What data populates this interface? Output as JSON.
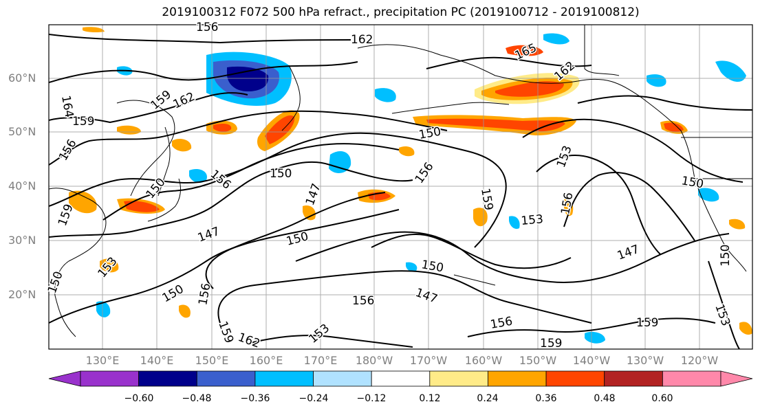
{
  "title": "2019100312 F072 500 hPa refract., precipitation PC (2019100712 - 2019100812)",
  "lat_labels": [
    "60°N",
    "50°N",
    "40°N",
    "30°N",
    "20°N"
  ],
  "lon_labels": [
    "130°E",
    "140°E",
    "150°E",
    "160°E",
    "170°E",
    "180°W",
    "170°W",
    "160°W",
    "150°W",
    "140°W",
    "130°W",
    "120°W"
  ],
  "contour_labels": [
    "162",
    "165",
    "162",
    "162",
    "159",
    "156",
    "164",
    "159",
    "156",
    "150",
    "150",
    "150",
    "156",
    "147",
    "156",
    "159",
    "153",
    "153",
    "156",
    "159",
    "150",
    "150",
    "147",
    "150",
    "150",
    "150",
    "156",
    "147",
    "156",
    "159",
    "153",
    "162",
    "153",
    "156",
    "159",
    "159",
    "147",
    "153",
    "150"
  ],
  "colorbar": {
    "tick_labels": [
      "−0.60",
      "−0.48",
      "−0.36",
      "−0.24",
      "−0.12",
      "0.12",
      "0.24",
      "0.36",
      "0.48",
      "0.60"
    ],
    "colors": [
      "#9932cc",
      "#00008b",
      "#3a5fcd",
      "#00bfff",
      "#b0e2ff",
      "#ffffff",
      "#ffeb88",
      "#ffa500",
      "#ff4500",
      "#b22222",
      "#ff88aa"
    ]
  },
  "colors": {
    "contour": "#000000",
    "grid": "#999999",
    "coast": "#000000"
  }
}
